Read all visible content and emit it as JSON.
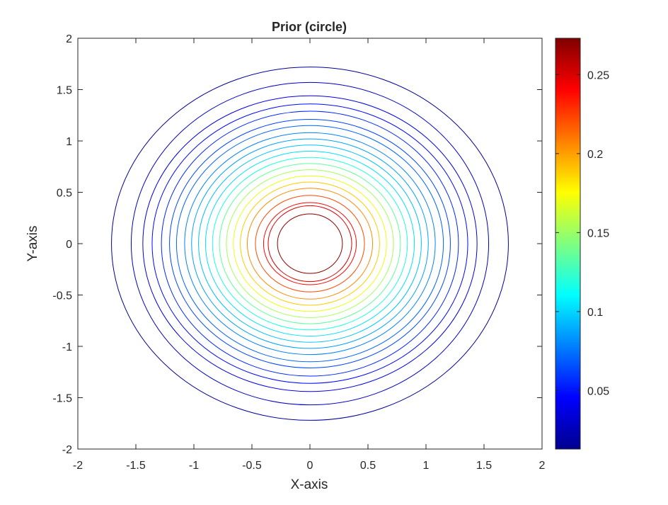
{
  "chart_data": {
    "type": "contour",
    "title": "Prior (circle)",
    "xlabel": "X-axis",
    "ylabel": "Y-axis",
    "xlim": [
      -2,
      2
    ],
    "ylim": [
      -2,
      2
    ],
    "xticks": [
      "-2",
      "-1.5",
      "-1",
      "-0.5",
      "0",
      "0.5",
      "1",
      "1.5",
      "2"
    ],
    "yticks": [
      "2",
      "1.5",
      "1",
      "0.5",
      "0",
      "-0.5",
      "-1",
      "-1.5",
      "-2"
    ],
    "xtick_values": [
      -2,
      -1.5,
      -1,
      -0.5,
      0,
      0.5,
      1,
      1.5,
      2
    ],
    "ytick_values": [
      2,
      1.5,
      1,
      0.5,
      0,
      -0.5,
      -1,
      -1.5,
      -2
    ],
    "colormap": "jet",
    "colorbar": {
      "range": [
        0.013,
        0.273
      ],
      "ticks": [
        "0.25",
        "0.2",
        "0.15",
        "0.1",
        "0.05"
      ],
      "tick_values": [
        0.25,
        0.2,
        0.15,
        0.1,
        0.05
      ]
    },
    "contour_levels": [
      {
        "level": 0.013,
        "radius_x": 1.71,
        "radius_y": 1.72,
        "color": "#00009a"
      },
      {
        "level": 0.0259,
        "radius_x": 1.54,
        "radius_y": 1.57,
        "color": "#0000c4"
      },
      {
        "level": 0.0388,
        "radius_x": 1.44,
        "radius_y": 1.44,
        "color": "#0000e6"
      },
      {
        "level": 0.0517,
        "radius_x": 1.36,
        "radius_y": 1.36,
        "color": "#0008ff"
      },
      {
        "level": 0.0646,
        "radius_x": 1.28,
        "radius_y": 1.29,
        "color": "#0026ff"
      },
      {
        "level": 0.0775,
        "radius_x": 1.21,
        "radius_y": 1.21,
        "color": "#0045ff"
      },
      {
        "level": 0.0904,
        "radius_x": 1.15,
        "radius_y": 1.15,
        "color": "#0064ff"
      },
      {
        "level": 0.1033,
        "radius_x": 1.08,
        "radius_y": 1.08,
        "color": "#0083ff"
      },
      {
        "level": 0.1162,
        "radius_x": 1.02,
        "radius_y": 1.02,
        "color": "#00a2ff"
      },
      {
        "level": 0.1291,
        "radius_x": 0.96,
        "radius_y": 0.96,
        "color": "#00c1ff"
      },
      {
        "level": 0.142,
        "radius_x": 0.9,
        "radius_y": 0.9,
        "color": "#00e0ff"
      },
      {
        "level": 0.1549,
        "radius_x": 0.84,
        "radius_y": 0.84,
        "color": "#1dffe2"
      },
      {
        "level": 0.1678,
        "radius_x": 0.78,
        "radius_y": 0.78,
        "color": "#60ff9f"
      },
      {
        "level": 0.1807,
        "radius_x": 0.72,
        "radius_y": 0.72,
        "color": "#a4ff5b"
      },
      {
        "level": 0.1936,
        "radius_x": 0.66,
        "radius_y": 0.66,
        "color": "#e8ff17"
      },
      {
        "level": 0.2065,
        "radius_x": 0.6,
        "radius_y": 0.6,
        "color": "#ffcc00"
      },
      {
        "level": 0.2194,
        "radius_x": 0.54,
        "radius_y": 0.54,
        "color": "#ff8a00"
      },
      {
        "level": 0.2323,
        "radius_x": 0.47,
        "radius_y": 0.47,
        "color": "#ff4800"
      },
      {
        "level": 0.2452,
        "radius_x": 0.4,
        "radius_y": 0.4,
        "color": "#ff0600"
      },
      {
        "level": 0.2581,
        "radius_x": 0.36,
        "radius_y": 0.37,
        "color": "#d80000"
      },
      {
        "level": 0.271,
        "radius_x": 0.28,
        "radius_y": 0.29,
        "color": "#8e0000"
      }
    ]
  }
}
